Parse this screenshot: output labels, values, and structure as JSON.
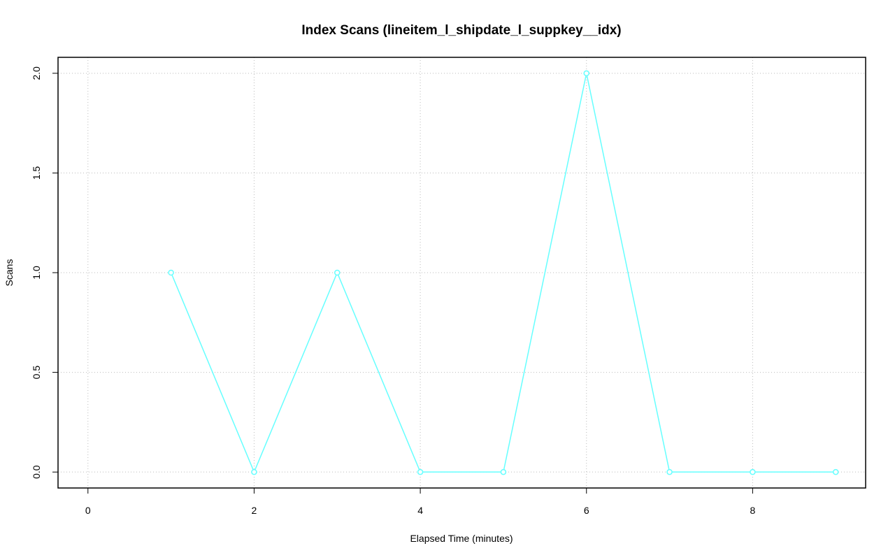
{
  "chart_data": {
    "type": "line",
    "title": "Index Scans (lineitem_l_shipdate_l_suppkey__idx)",
    "x_label": "Elapsed Time (minutes)",
    "y_label": "Scans",
    "x": [
      1,
      2,
      3,
      4,
      5,
      6,
      7,
      8,
      9
    ],
    "series": [
      {
        "name": "Scans",
        "color": "#66ffff",
        "values": [
          1,
          0,
          1,
          0,
          0,
          2,
          0,
          0,
          0
        ]
      }
    ],
    "xlim": [
      -0.36,
      9.36
    ],
    "ylim": [
      -0.08,
      2.08
    ],
    "xticks": [
      0,
      2,
      4,
      6,
      8
    ],
    "yticks": [
      {
        "value": 0,
        "label": "0.0"
      },
      {
        "value": 0.5,
        "label": "0.5"
      },
      {
        "value": 1,
        "label": "1.0"
      },
      {
        "value": 1.5,
        "label": "1.5"
      },
      {
        "value": 2,
        "label": "2.0"
      }
    ],
    "grid": true
  }
}
